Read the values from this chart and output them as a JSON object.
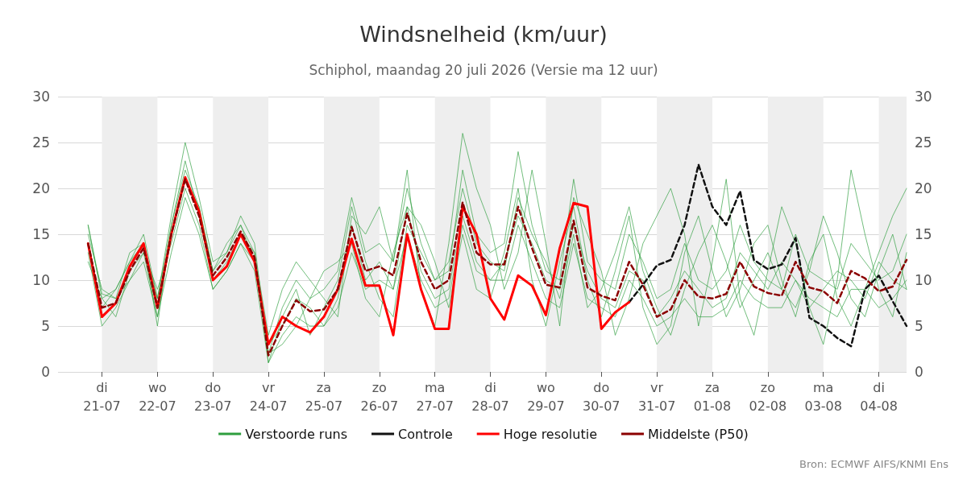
{
  "chart_data": {
    "type": "line",
    "title": "Windsnelheid (km/uur)",
    "subtitle": "Schiphol, maandag 20 juli 2026 (Versie ma 12 uur)",
    "x": [
      "2026-07-20T18:00",
      "2026-07-21T00:00",
      "2026-07-21T06:00",
      "2026-07-21T12:00",
      "2026-07-21T18:00",
      "2026-07-22T00:00",
      "2026-07-22T06:00",
      "2026-07-22T12:00",
      "2026-07-22T18:00",
      "2026-07-23T00:00",
      "2026-07-23T06:00",
      "2026-07-23T12:00",
      "2026-07-23T18:00",
      "2026-07-24T00:00",
      "2026-07-24T06:00",
      "2026-07-24T12:00",
      "2026-07-24T18:00",
      "2026-07-25T00:00",
      "2026-07-25T06:00",
      "2026-07-25T12:00",
      "2026-07-25T18:00",
      "2026-07-26T00:00",
      "2026-07-26T06:00",
      "2026-07-26T12:00",
      "2026-07-26T18:00",
      "2026-07-27T00:00",
      "2026-07-27T06:00",
      "2026-07-27T12:00",
      "2026-07-27T18:00",
      "2026-07-28T00:00",
      "2026-07-28T06:00",
      "2026-07-28T12:00",
      "2026-07-28T18:00",
      "2026-07-29T00:00",
      "2026-07-29T06:00",
      "2026-07-29T12:00",
      "2026-07-29T18:00",
      "2026-07-30T00:00",
      "2026-07-30T06:00",
      "2026-07-30T12:00",
      "2026-07-30T18:00",
      "2026-07-31T00:00",
      "2026-07-31T06:00",
      "2026-07-31T12:00",
      "2026-07-31T18:00",
      "2026-08-01T00:00",
      "2026-08-01T06:00",
      "2026-08-01T12:00",
      "2026-08-01T18:00",
      "2026-08-02T00:00",
      "2026-08-02T06:00",
      "2026-08-02T12:00",
      "2026-08-02T18:00",
      "2026-08-03T00:00",
      "2026-08-03T06:00",
      "2026-08-03T12:00",
      "2026-08-03T18:00",
      "2026-08-04T00:00",
      "2026-08-04T06:00",
      "2026-08-04T12:00"
    ],
    "series": [
      {
        "name": "Verstoorde runs",
        "color": "#2e9e3e",
        "values": [
          16,
          8,
          9,
          12,
          15,
          8,
          17,
          25,
          19,
          12,
          13,
          17,
          14,
          2,
          7,
          10,
          8,
          9,
          11,
          19,
          13,
          14,
          12,
          20,
          14,
          10,
          11,
          22,
          15,
          13,
          14,
          24,
          16,
          11,
          10,
          21,
          12,
          10,
          9,
          15,
          12,
          8,
          9,
          14,
          10,
          9,
          11,
          16,
          12,
          10,
          9,
          15,
          11,
          10,
          9,
          14,
          12,
          10,
          11,
          15
        ]
      },
      {
        "color": "#2e9e3e",
        "values": [
          13,
          5,
          7,
          10,
          12,
          6,
          13,
          19,
          15,
          9,
          11,
          14,
          11,
          1,
          4,
          6,
          5,
          5,
          7,
          13,
          9,
          10,
          9,
          15,
          10,
          7,
          8,
          16,
          11,
          10,
          10,
          16,
          12,
          8,
          7,
          14,
          8,
          7,
          6,
          10,
          8,
          5,
          6,
          8,
          6,
          6,
          7,
          10,
          8,
          7,
          7,
          10,
          8,
          7,
          6,
          9,
          9,
          7,
          8,
          10
        ]
      },
      {
        "color": "#2e9e3e",
        "values": [
          15,
          9,
          8,
          13,
          14,
          5,
          16,
          22,
          18,
          11,
          14,
          16,
          13,
          4,
          9,
          12,
          10,
          8,
          6,
          17,
          15,
          18,
          12,
          22,
          9,
          5,
          14,
          26,
          20,
          16,
          9,
          13,
          22,
          14,
          5,
          19,
          15,
          11,
          4,
          8,
          14,
          17,
          20,
          15,
          5,
          12,
          21,
          8,
          4,
          11,
          18,
          14,
          7,
          3,
          10,
          22,
          15,
          9,
          6,
          13
        ]
      },
      {
        "color": "#2e9e3e",
        "values": [
          12,
          8,
          6,
          11,
          13,
          9,
          14,
          20,
          16,
          9,
          11,
          14,
          12,
          2,
          3,
          5,
          8,
          11,
          12,
          14,
          8,
          6,
          13,
          18,
          16,
          12,
          7,
          15,
          9,
          8,
          13,
          20,
          10,
          5,
          12,
          18,
          10,
          6,
          11,
          17,
          7,
          3,
          5,
          13,
          17,
          11,
          6,
          9,
          14,
          16,
          10,
          6,
          12,
          15,
          8,
          5,
          9,
          13,
          17,
          20
        ]
      },
      {
        "color": "#2e9e3e",
        "values": [
          14,
          7,
          9,
          12,
          14,
          8,
          16,
          23,
          17,
          10,
          12,
          15,
          13,
          1,
          6,
          9,
          4,
          7,
          10,
          18,
          12,
          8,
          6,
          16,
          13,
          10,
          12,
          20,
          14,
          12,
          11,
          19,
          15,
          12,
          8,
          15,
          7,
          9,
          13,
          18,
          11,
          7,
          4,
          9,
          13,
          16,
          12,
          7,
          10,
          13,
          9,
          7,
          11,
          17,
          13,
          8,
          6,
          11,
          15,
          9
        ]
      },
      {
        "color": "#2e9e3e",
        "values": [
          16,
          8.5,
          8,
          10,
          13,
          6,
          15,
          21,
          18,
          11,
          13,
          16,
          12,
          3,
          5,
          8,
          7,
          5,
          8,
          16,
          10,
          12,
          9,
          18,
          11,
          8,
          9,
          17,
          12,
          10,
          12,
          17,
          14,
          10,
          9,
          16,
          11,
          8,
          7,
          11,
          10,
          6,
          8,
          11,
          9,
          7,
          8,
          13,
          11,
          9,
          12,
          10,
          7,
          9,
          11,
          10,
          8,
          12,
          10,
          9
        ]
      },
      {
        "name": "Controle",
        "color": "#111111",
        "line_style": "dashed",
        "values": [
          null,
          null,
          null,
          null,
          null,
          null,
          null,
          null,
          null,
          null,
          null,
          null,
          null,
          null,
          null,
          null,
          null,
          null,
          null,
          null,
          null,
          null,
          null,
          null,
          null,
          null,
          null,
          null,
          null,
          null,
          null,
          null,
          null,
          null,
          null,
          null,
          null,
          null,
          null,
          7.6,
          9.5,
          11.6,
          12.2,
          16,
          22.6,
          18,
          16,
          19.7,
          12.2,
          11.2,
          11.7,
          14.6,
          5.9,
          5,
          3.7,
          2.8,
          9,
          10.5,
          7.7,
          5
        ]
      },
      {
        "name": "Hoge resolutie",
        "color": "#ff0000",
        "line_style": "solid",
        "values": [
          14,
          6,
          7.5,
          11.5,
          14,
          7,
          15,
          21.2,
          17.5,
          10,
          11.5,
          15,
          12,
          3,
          6,
          5,
          4.3,
          6,
          9,
          14.5,
          9.4,
          9.4,
          4,
          15,
          9,
          4.7,
          4.7,
          18,
          15,
          8,
          5.7,
          10.5,
          9.4,
          6.2,
          13.5,
          18.4,
          18,
          4.7,
          6.5,
          7.6,
          null,
          null,
          null,
          null,
          null,
          null,
          null,
          null,
          null,
          null,
          null,
          null,
          null,
          null,
          null,
          null,
          null,
          null,
          null,
          null
        ]
      },
      {
        "name": "Middelste (P50)",
        "color": "#8b0000",
        "line_style": "dashed",
        "values": [
          14,
          7,
          7.5,
          11,
          13.5,
          7,
          15,
          21,
          17,
          10.5,
          12.5,
          15.3,
          12.5,
          1.8,
          5,
          7.8,
          6.6,
          6.8,
          9,
          15.8,
          11,
          11.5,
          10.5,
          17.3,
          12,
          9,
          10,
          18.5,
          13,
          11.7,
          11.7,
          18,
          13.5,
          9.5,
          9.2,
          16.5,
          9.2,
          8.3,
          7.8,
          12,
          9.5,
          6,
          6.8,
          10,
          8.2,
          8,
          8.5,
          12,
          9.3,
          8.6,
          8.3,
          12,
          9.2,
          8.8,
          7.5,
          11,
          10.2,
          8.8,
          9.3,
          12.2
        ]
      }
    ],
    "xlim": [
      "2026-07-20T05:00",
      "2026-08-04T12:00"
    ],
    "xticks": [
      {
        "value": "2026-07-21",
        "label": "di\n21-07"
      },
      {
        "value": "2026-07-22",
        "label": "wo\n22-07"
      },
      {
        "value": "2026-07-23",
        "label": "do\n23-07"
      },
      {
        "value": "2026-07-24",
        "label": "vr\n24-07"
      },
      {
        "value": "2026-07-25",
        "label": "za\n25-07"
      },
      {
        "value": "2026-07-26",
        "label": "zo\n26-07"
      },
      {
        "value": "2026-07-27",
        "label": "ma\n27-07"
      },
      {
        "value": "2026-07-28",
        "label": "di\n28-07"
      },
      {
        "value": "2026-07-29",
        "label": "wo\n29-07"
      },
      {
        "value": "2026-07-30",
        "label": "do\n30-07"
      },
      {
        "value": "2026-07-31",
        "label": "vr\n31-07"
      },
      {
        "value": "2026-08-01",
        "label": "za\n01-08"
      },
      {
        "value": "2026-08-02",
        "label": "zo\n02-08"
      },
      {
        "value": "2026-08-03",
        "label": "ma\n03-08"
      },
      {
        "value": "2026-08-04",
        "label": "di\n04-08"
      }
    ],
    "ylim": [
      0,
      30
    ],
    "yticks": [
      0,
      5,
      10,
      15,
      20,
      25,
      30
    ],
    "y2lim": [
      0,
      30
    ],
    "y2ticks": [
      0,
      5,
      10,
      15,
      20,
      25,
      30
    ],
    "bands": [
      {
        "axis": "x",
        "from": "2026-07-21",
        "to": "2026-07-22",
        "color": "#eeeeee"
      },
      {
        "axis": "x",
        "from": "2026-07-23",
        "to": "2026-07-24",
        "color": "#eeeeee"
      },
      {
        "axis": "x",
        "from": "2026-07-25",
        "to": "2026-07-26",
        "color": "#eeeeee"
      },
      {
        "axis": "x",
        "from": "2026-07-27",
        "to": "2026-07-28",
        "color": "#eeeeee"
      },
      {
        "axis": "x",
        "from": "2026-07-29",
        "to": "2026-07-30",
        "color": "#eeeeee"
      },
      {
        "axis": "x",
        "from": "2026-07-31",
        "to": "2026-08-01",
        "color": "#eeeeee"
      },
      {
        "axis": "x",
        "from": "2026-08-02",
        "to": "2026-08-03",
        "color": "#eeeeee"
      },
      {
        "axis": "x",
        "from": "2026-08-04",
        "to": "2026-08-04T12:00",
        "color": "#eeeeee"
      }
    ],
    "annotations": [
      "Bron: ECMWF AIFS/KNMI Ens"
    ],
    "grid": "y",
    "legend": "bottom",
    "marker": "none"
  }
}
